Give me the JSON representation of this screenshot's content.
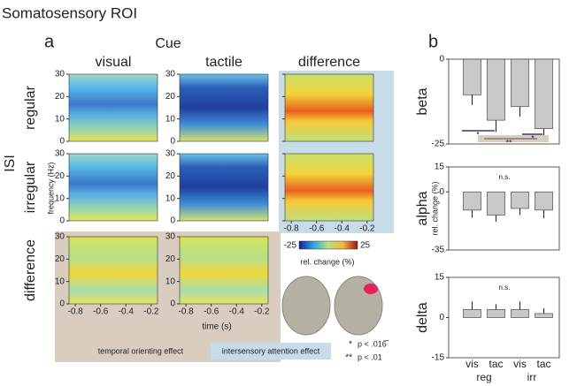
{
  "title": "Somatosensory ROI",
  "panel_a": {
    "label": "a",
    "cue_label": "Cue",
    "columns": [
      "visual",
      "tactile",
      "difference"
    ],
    "isi_label": "ISI",
    "rows": [
      "regular",
      "irregular",
      "difference"
    ],
    "y_axis_label": "frequency (Hz)",
    "yticks": [
      30,
      20,
      10,
      0
    ],
    "ylim": [
      0,
      30
    ],
    "xticks": [
      -0.8,
      -0.6,
      -0.4,
      -0.2
    ],
    "xlim": [
      -0.85,
      -0.15
    ],
    "x_axis_label": "time (s)",
    "colorbar": {
      "min": -25,
      "max": 25,
      "label": "rel. change (%)"
    },
    "legend": [
      "temporal orienting effect",
      "intersensory attention effect"
    ],
    "significance": [
      {
        "symbol": "*",
        "text": "p < .016̅"
      },
      {
        "symbol": "**",
        "text": "p < .01"
      }
    ]
  },
  "panel_b": {
    "label": "b",
    "y_axis_label": "rel. change (%)",
    "categories": [
      "vis",
      "tac",
      "vis",
      "tac"
    ],
    "groups": [
      "reg",
      "irr"
    ]
  },
  "chart_data": [
    {
      "type": "bar",
      "title": "beta",
      "values": [
        -10.5,
        -18,
        -14,
        -20.5
      ],
      "errors": [
        3,
        3.5,
        3,
        4
      ],
      "ylim": [
        -25,
        0
      ],
      "yticks": [
        0,
        -25
      ],
      "color": "#c8c8c8",
      "annotations": [
        "*",
        "*",
        "**"
      ]
    },
    {
      "type": "bar",
      "title": "alpha",
      "values": [
        -11,
        -14,
        -10,
        -11
      ],
      "errors": [
        4.5,
        4,
        4,
        5
      ],
      "ylim": [
        -35,
        15
      ],
      "yticks": [
        15,
        0,
        -35
      ],
      "color": "#c8c8c8",
      "annotations": [
        "n.s."
      ]
    },
    {
      "type": "bar",
      "title": "delta",
      "values": [
        3,
        3,
        3,
        1.5
      ],
      "errors": [
        3,
        2,
        3,
        2
      ],
      "ylim": [
        -15,
        15
      ],
      "yticks": [
        15,
        0,
        -15
      ],
      "color": "#c8c8c8",
      "annotations": [
        "n.s."
      ]
    }
  ]
}
